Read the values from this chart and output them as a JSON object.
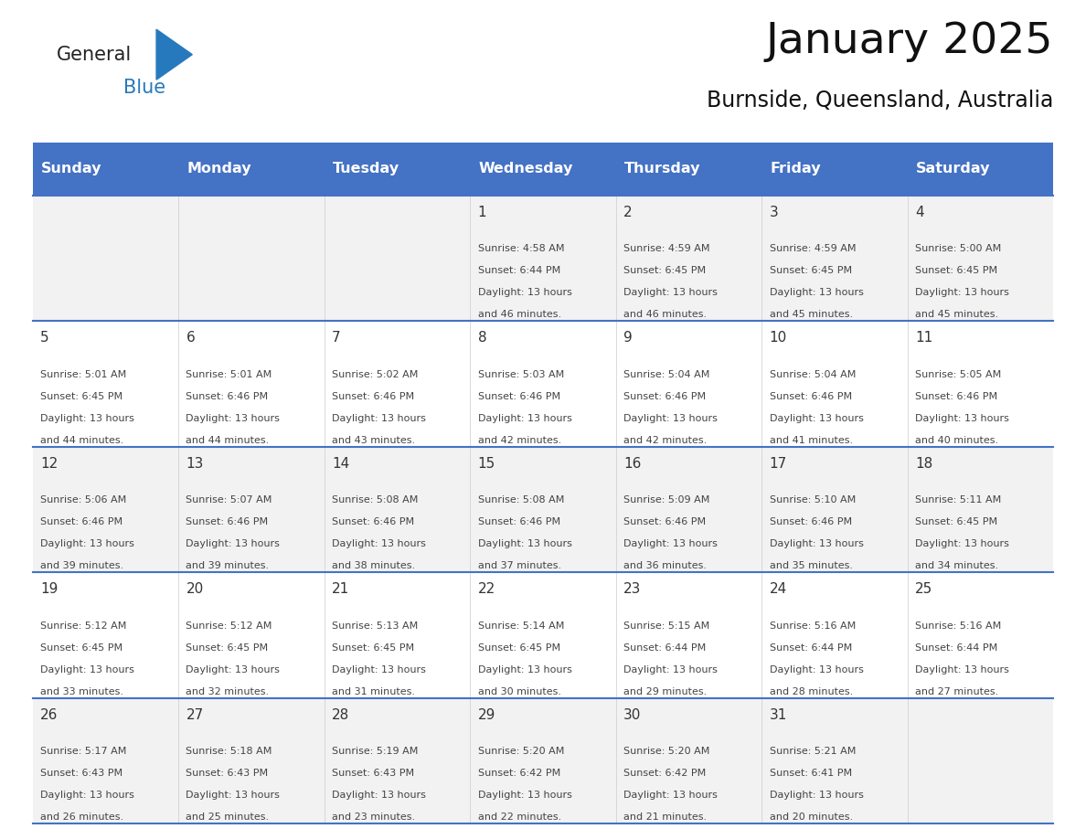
{
  "title": "January 2025",
  "subtitle": "Burnside, Queensland, Australia",
  "header_bg_color": "#4472C4",
  "header_text_color": "#FFFFFF",
  "row_bg_colors": [
    "#F2F2F2",
    "#FFFFFF"
  ],
  "grid_line_color": "#4472C4",
  "day_number_color": "#333333",
  "cell_text_color": "#444444",
  "days_of_week": [
    "Sunday",
    "Monday",
    "Tuesday",
    "Wednesday",
    "Thursday",
    "Friday",
    "Saturday"
  ],
  "logo_general_color": "#222222",
  "logo_blue_color": "#2779BD",
  "logo_triangle_color": "#2779BD",
  "calendar": [
    [
      null,
      null,
      null,
      {
        "day": "1",
        "sunrise": "4:58 AM",
        "sunset": "6:44 PM",
        "dl1": "Daylight: 13 hours",
        "dl2": "and 46 minutes."
      },
      {
        "day": "2",
        "sunrise": "4:59 AM",
        "sunset": "6:45 PM",
        "dl1": "Daylight: 13 hours",
        "dl2": "and 46 minutes."
      },
      {
        "day": "3",
        "sunrise": "4:59 AM",
        "sunset": "6:45 PM",
        "dl1": "Daylight: 13 hours",
        "dl2": "and 45 minutes."
      },
      {
        "day": "4",
        "sunrise": "5:00 AM",
        "sunset": "6:45 PM",
        "dl1": "Daylight: 13 hours",
        "dl2": "and 45 minutes."
      }
    ],
    [
      {
        "day": "5",
        "sunrise": "5:01 AM",
        "sunset": "6:45 PM",
        "dl1": "Daylight: 13 hours",
        "dl2": "and 44 minutes."
      },
      {
        "day": "6",
        "sunrise": "5:01 AM",
        "sunset": "6:46 PM",
        "dl1": "Daylight: 13 hours",
        "dl2": "and 44 minutes."
      },
      {
        "day": "7",
        "sunrise": "5:02 AM",
        "sunset": "6:46 PM",
        "dl1": "Daylight: 13 hours",
        "dl2": "and 43 minutes."
      },
      {
        "day": "8",
        "sunrise": "5:03 AM",
        "sunset": "6:46 PM",
        "dl1": "Daylight: 13 hours",
        "dl2": "and 42 minutes."
      },
      {
        "day": "9",
        "sunrise": "5:04 AM",
        "sunset": "6:46 PM",
        "dl1": "Daylight: 13 hours",
        "dl2": "and 42 minutes."
      },
      {
        "day": "10",
        "sunrise": "5:04 AM",
        "sunset": "6:46 PM",
        "dl1": "Daylight: 13 hours",
        "dl2": "and 41 minutes."
      },
      {
        "day": "11",
        "sunrise": "5:05 AM",
        "sunset": "6:46 PM",
        "dl1": "Daylight: 13 hours",
        "dl2": "and 40 minutes."
      }
    ],
    [
      {
        "day": "12",
        "sunrise": "5:06 AM",
        "sunset": "6:46 PM",
        "dl1": "Daylight: 13 hours",
        "dl2": "and 39 minutes."
      },
      {
        "day": "13",
        "sunrise": "5:07 AM",
        "sunset": "6:46 PM",
        "dl1": "Daylight: 13 hours",
        "dl2": "and 39 minutes."
      },
      {
        "day": "14",
        "sunrise": "5:08 AM",
        "sunset": "6:46 PM",
        "dl1": "Daylight: 13 hours",
        "dl2": "and 38 minutes."
      },
      {
        "day": "15",
        "sunrise": "5:08 AM",
        "sunset": "6:46 PM",
        "dl1": "Daylight: 13 hours",
        "dl2": "and 37 minutes."
      },
      {
        "day": "16",
        "sunrise": "5:09 AM",
        "sunset": "6:46 PM",
        "dl1": "Daylight: 13 hours",
        "dl2": "and 36 minutes."
      },
      {
        "day": "17",
        "sunrise": "5:10 AM",
        "sunset": "6:46 PM",
        "dl1": "Daylight: 13 hours",
        "dl2": "and 35 minutes."
      },
      {
        "day": "18",
        "sunrise": "5:11 AM",
        "sunset": "6:45 PM",
        "dl1": "Daylight: 13 hours",
        "dl2": "and 34 minutes."
      }
    ],
    [
      {
        "day": "19",
        "sunrise": "5:12 AM",
        "sunset": "6:45 PM",
        "dl1": "Daylight: 13 hours",
        "dl2": "and 33 minutes."
      },
      {
        "day": "20",
        "sunrise": "5:12 AM",
        "sunset": "6:45 PM",
        "dl1": "Daylight: 13 hours",
        "dl2": "and 32 minutes."
      },
      {
        "day": "21",
        "sunrise": "5:13 AM",
        "sunset": "6:45 PM",
        "dl1": "Daylight: 13 hours",
        "dl2": "and 31 minutes."
      },
      {
        "day": "22",
        "sunrise": "5:14 AM",
        "sunset": "6:45 PM",
        "dl1": "Daylight: 13 hours",
        "dl2": "and 30 minutes."
      },
      {
        "day": "23",
        "sunrise": "5:15 AM",
        "sunset": "6:44 PM",
        "dl1": "Daylight: 13 hours",
        "dl2": "and 29 minutes."
      },
      {
        "day": "24",
        "sunrise": "5:16 AM",
        "sunset": "6:44 PM",
        "dl1": "Daylight: 13 hours",
        "dl2": "and 28 minutes."
      },
      {
        "day": "25",
        "sunrise": "5:16 AM",
        "sunset": "6:44 PM",
        "dl1": "Daylight: 13 hours",
        "dl2": "and 27 minutes."
      }
    ],
    [
      {
        "day": "26",
        "sunrise": "5:17 AM",
        "sunset": "6:43 PM",
        "dl1": "Daylight: 13 hours",
        "dl2": "and 26 minutes."
      },
      {
        "day": "27",
        "sunrise": "5:18 AM",
        "sunset": "6:43 PM",
        "dl1": "Daylight: 13 hours",
        "dl2": "and 25 minutes."
      },
      {
        "day": "28",
        "sunrise": "5:19 AM",
        "sunset": "6:43 PM",
        "dl1": "Daylight: 13 hours",
        "dl2": "and 23 minutes."
      },
      {
        "day": "29",
        "sunrise": "5:20 AM",
        "sunset": "6:42 PM",
        "dl1": "Daylight: 13 hours",
        "dl2": "and 22 minutes."
      },
      {
        "day": "30",
        "sunrise": "5:20 AM",
        "sunset": "6:42 PM",
        "dl1": "Daylight: 13 hours",
        "dl2": "and 21 minutes."
      },
      {
        "day": "31",
        "sunrise": "5:21 AM",
        "sunset": "6:41 PM",
        "dl1": "Daylight: 13 hours",
        "dl2": "and 20 minutes."
      },
      null
    ]
  ]
}
